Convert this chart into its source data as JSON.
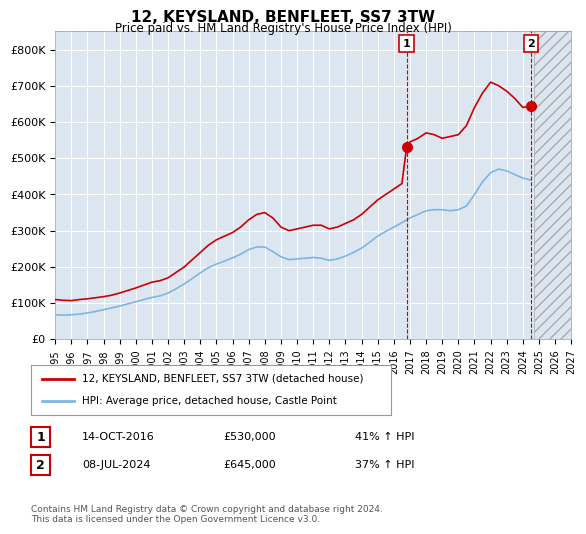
{
  "title": "12, KEYSLAND, BENFLEET, SS7 3TW",
  "subtitle": "Price paid vs. HM Land Registry's House Price Index (HPI)",
  "red_label": "12, KEYSLAND, BENFLEET, SS7 3TW (detached house)",
  "blue_label": "HPI: Average price, detached house, Castle Point",
  "annotation1": {
    "num": "1",
    "date": "14-OCT-2016",
    "price": "£530,000",
    "pct": "41% ↑ HPI"
  },
  "annotation2": {
    "num": "2",
    "date": "08-JUL-2024",
    "price": "£645,000",
    "pct": "37% ↑ HPI"
  },
  "footer": "Contains HM Land Registry data © Crown copyright and database right 2024.\nThis data is licensed under the Open Government Licence v3.0.",
  "ylim": [
    0,
    850000
  ],
  "yticks": [
    0,
    100000,
    200000,
    300000,
    400000,
    500000,
    600000,
    700000,
    800000
  ],
  "ytick_labels": [
    "£0",
    "£100K",
    "£200K",
    "£300K",
    "£400K",
    "£500K",
    "£600K",
    "£700K",
    "£800K"
  ],
  "background_color": "#dce6f1",
  "plot_bg": "#dce6f1",
  "red_color": "#cc0000",
  "blue_color": "#7eb6e0",
  "vline_color": "#cc0000",
  "vline_x1": 2016.79,
  "vline_x2": 2024.52,
  "marker1_x": 2016.79,
  "marker1_y": 530000,
  "marker2_x": 2024.52,
  "marker2_y": 645000,
  "xmin": 1995,
  "xmax": 2027,
  "xticks": [
    1995,
    1996,
    1997,
    1998,
    1999,
    2000,
    2001,
    2002,
    2003,
    2004,
    2005,
    2006,
    2007,
    2008,
    2009,
    2010,
    2011,
    2012,
    2013,
    2014,
    2015,
    2016,
    2017,
    2018,
    2019,
    2020,
    2021,
    2022,
    2023,
    2024,
    2025,
    2026,
    2027
  ],
  "red_line": {
    "x": [
      1995.0,
      1995.5,
      1996.0,
      1996.5,
      1997.0,
      1997.5,
      1998.0,
      1998.5,
      1999.0,
      1999.5,
      2000.0,
      2000.5,
      2001.0,
      2001.5,
      2002.0,
      2002.5,
      2003.0,
      2003.5,
      2004.0,
      2004.5,
      2005.0,
      2005.5,
      2006.0,
      2006.5,
      2007.0,
      2007.5,
      2008.0,
      2008.5,
      2009.0,
      2009.5,
      2010.0,
      2010.5,
      2011.0,
      2011.5,
      2012.0,
      2012.5,
      2013.0,
      2013.5,
      2014.0,
      2014.5,
      2015.0,
      2015.5,
      2016.0,
      2016.5,
      2016.79,
      2017.0,
      2017.5,
      2018.0,
      2018.5,
      2019.0,
      2019.5,
      2020.0,
      2020.5,
      2021.0,
      2021.5,
      2022.0,
      2022.5,
      2023.0,
      2023.5,
      2024.0,
      2024.52
    ],
    "y": [
      110000,
      108000,
      107000,
      110000,
      112000,
      115000,
      118000,
      122000,
      128000,
      135000,
      142000,
      150000,
      158000,
      162000,
      170000,
      185000,
      200000,
      220000,
      240000,
      260000,
      275000,
      285000,
      295000,
      310000,
      330000,
      345000,
      350000,
      335000,
      310000,
      300000,
      305000,
      310000,
      315000,
      315000,
      305000,
      310000,
      320000,
      330000,
      345000,
      365000,
      385000,
      400000,
      415000,
      430000,
      530000,
      545000,
      555000,
      570000,
      565000,
      555000,
      560000,
      565000,
      590000,
      640000,
      680000,
      710000,
      700000,
      685000,
      665000,
      640000,
      645000
    ]
  },
  "blue_line": {
    "x": [
      1995.0,
      1995.5,
      1996.0,
      1996.5,
      1997.0,
      1997.5,
      1998.0,
      1998.5,
      1999.0,
      1999.5,
      2000.0,
      2000.5,
      2001.0,
      2001.5,
      2002.0,
      2002.5,
      2003.0,
      2003.5,
      2004.0,
      2004.5,
      2005.0,
      2005.5,
      2006.0,
      2006.5,
      2007.0,
      2007.5,
      2008.0,
      2008.5,
      2009.0,
      2009.5,
      2010.0,
      2010.5,
      2011.0,
      2011.5,
      2012.0,
      2012.5,
      2013.0,
      2013.5,
      2014.0,
      2014.5,
      2015.0,
      2015.5,
      2016.0,
      2016.5,
      2017.0,
      2017.5,
      2018.0,
      2018.5,
      2019.0,
      2019.5,
      2020.0,
      2020.5,
      2021.0,
      2021.5,
      2022.0,
      2022.5,
      2023.0,
      2023.5,
      2024.0,
      2024.5
    ],
    "y": [
      68000,
      67000,
      68000,
      70000,
      73000,
      77000,
      82000,
      87000,
      92000,
      98000,
      104000,
      110000,
      116000,
      120000,
      128000,
      140000,
      153000,
      168000,
      184000,
      198000,
      208000,
      216000,
      225000,
      235000,
      248000,
      255000,
      255000,
      242000,
      228000,
      220000,
      222000,
      224000,
      226000,
      224000,
      218000,
      222000,
      230000,
      240000,
      252000,
      268000,
      285000,
      298000,
      310000,
      322000,
      335000,
      345000,
      355000,
      358000,
      358000,
      355000,
      358000,
      368000,
      400000,
      435000,
      460000,
      470000,
      465000,
      455000,
      445000,
      440000
    ]
  }
}
